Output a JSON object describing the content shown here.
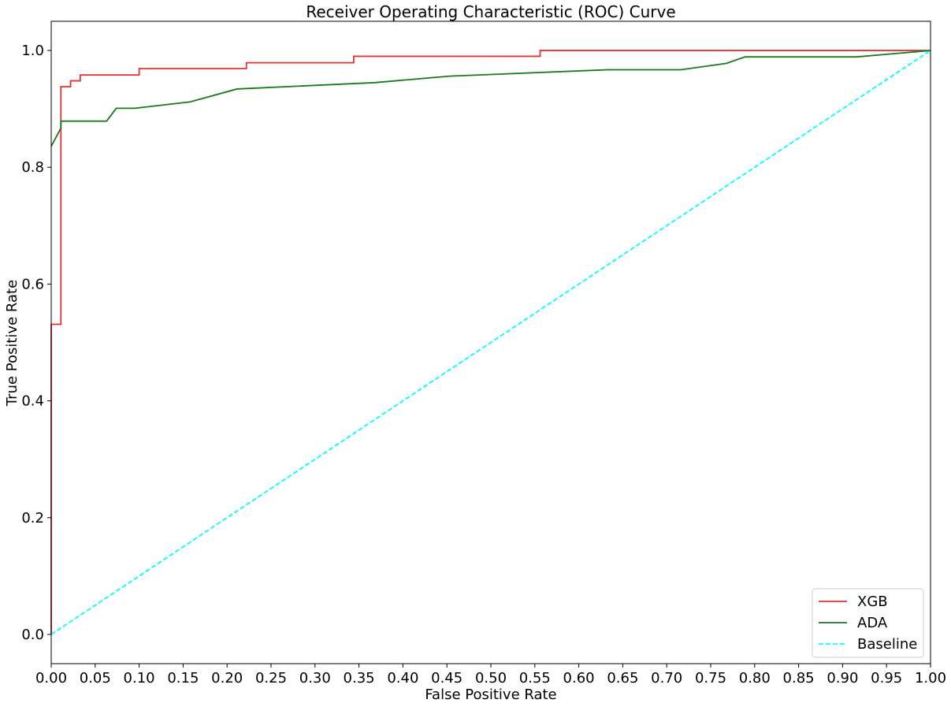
{
  "chart_data": {
    "type": "line",
    "title": "Receiver Operating Characteristic (ROC) Curve",
    "xlabel": "False Positive Rate",
    "ylabel": "True Positive Rate",
    "xlim": [
      0,
      1
    ],
    "ylim": [
      -0.05,
      1.05
    ],
    "xticks": [
      0,
      0.05,
      0.1,
      0.15,
      0.2,
      0.25,
      0.3,
      0.35,
      0.4,
      0.45,
      0.5,
      0.55,
      0.6,
      0.65,
      0.7,
      0.75,
      0.8,
      0.85,
      0.9,
      0.95,
      1.0
    ],
    "xtick_labels": [
      "0.00",
      "0.05",
      "0.10",
      "0.15",
      "0.20",
      "0.25",
      "0.30",
      "0.35",
      "0.40",
      "0.45",
      "0.50",
      "0.55",
      "0.60",
      "0.65",
      "0.70",
      "0.75",
      "0.80",
      "0.85",
      "0.90",
      "0.95",
      "1.00"
    ],
    "yticks": [
      0,
      0.2,
      0.4,
      0.6,
      0.8,
      1.0
    ],
    "ytick_labels": [
      "0.0",
      "0.2",
      "0.4",
      "0.6",
      "0.8",
      "1.0"
    ],
    "grid": false,
    "legend_position": "lower-right",
    "series": [
      {
        "name": "XGB",
        "color": "#e8302f",
        "dash": "solid",
        "x": [
          0,
          0,
          0.011,
          0.011,
          0.022,
          0.022,
          0.033,
          0.033,
          0.1,
          0.1,
          0.222,
          0.222,
          0.344,
          0.344,
          0.556,
          0.556,
          1.0
        ],
        "y": [
          0,
          0.531,
          0.531,
          0.938,
          0.938,
          0.948,
          0.948,
          0.958,
          0.958,
          0.969,
          0.969,
          0.979,
          0.979,
          0.99,
          0.99,
          1.0,
          1.0
        ]
      },
      {
        "name": "ADA",
        "color": "#1a7a1a",
        "dash": "solid",
        "x": [
          0,
          0.011,
          0.011,
          0.063,
          0.074,
          0.095,
          0.158,
          0.211,
          0.368,
          0.453,
          0.632,
          0.716,
          0.768,
          0.789,
          0.916,
          1.0
        ],
        "y": [
          0.836,
          0.867,
          0.879,
          0.879,
          0.901,
          0.901,
          0.912,
          0.934,
          0.945,
          0.956,
          0.967,
          0.967,
          0.978,
          0.989,
          0.989,
          1.0
        ]
      },
      {
        "name": "Baseline",
        "color": "#00ffff",
        "dash": "dashed",
        "x": [
          0,
          1
        ],
        "y": [
          0,
          1
        ]
      }
    ]
  }
}
